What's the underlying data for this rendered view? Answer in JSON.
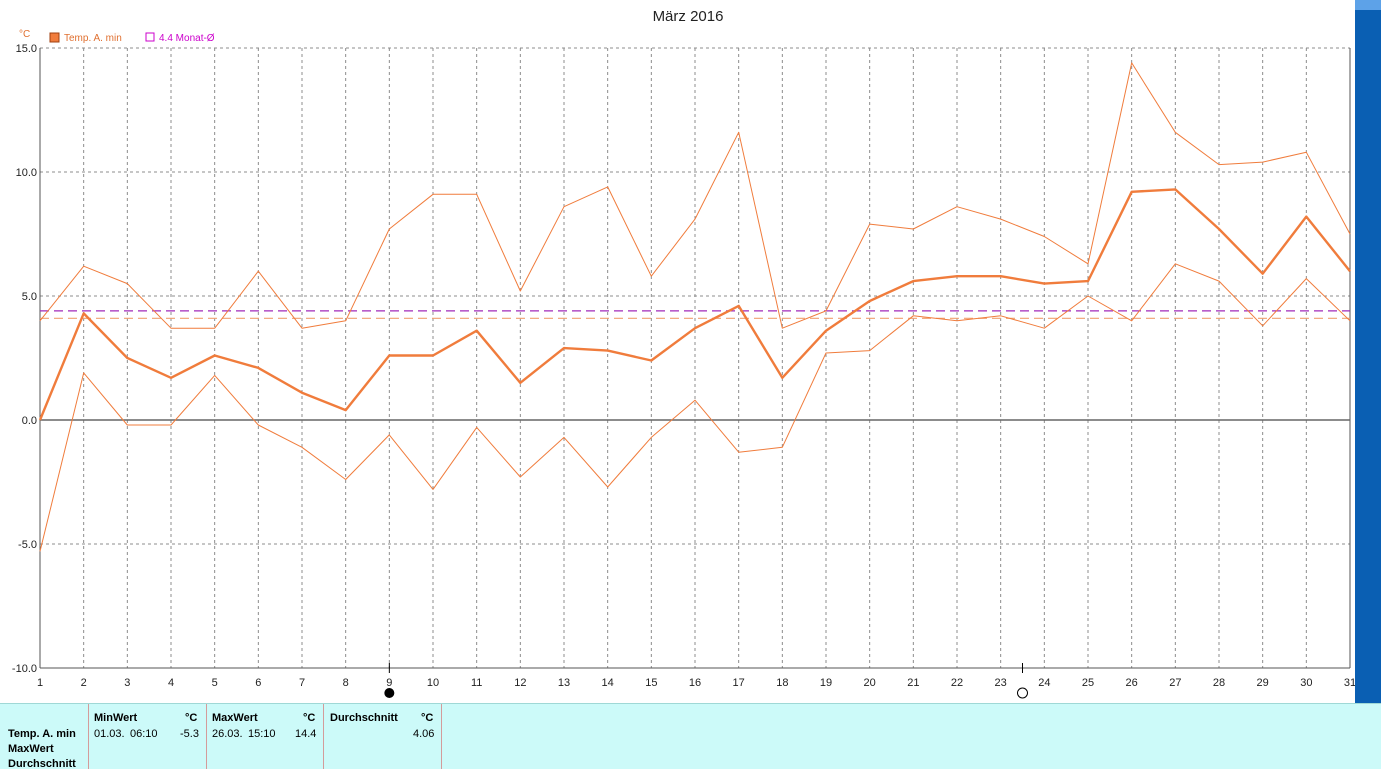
{
  "chart_data": {
    "type": "line",
    "title": "März 2016",
    "y_unit": "°C",
    "x": [
      1,
      2,
      3,
      4,
      5,
      6,
      7,
      8,
      9,
      10,
      11,
      12,
      13,
      14,
      15,
      16,
      17,
      18,
      19,
      20,
      21,
      22,
      23,
      24,
      25,
      26,
      27,
      28,
      29,
      30,
      31
    ],
    "ylim": [
      -10,
      15
    ],
    "yticks": [
      "15.0",
      "10.0",
      "5.0",
      "0.0",
      "-5.0",
      "-10.0"
    ],
    "ytick_values": [
      15,
      10,
      5,
      0,
      -5,
      -10
    ],
    "grid": true,
    "legend": [
      {
        "label": "Temp. A. min",
        "color": "#f07c3c",
        "marker": "filled-square"
      },
      {
        "label": "4.4 Monat-Ø",
        "color": "#cc00cc",
        "marker": "hollow-square"
      }
    ],
    "series": [
      {
        "name": "Temp. A. min",
        "role": "mean",
        "color": "#f07c3c",
        "values": [
          0.0,
          4.3,
          2.5,
          1.7,
          2.6,
          2.1,
          1.1,
          0.4,
          2.6,
          2.6,
          3.6,
          1.5,
          2.9,
          2.8,
          2.4,
          3.7,
          4.6,
          1.7,
          3.6,
          4.8,
          5.6,
          5.8,
          5.8,
          5.5,
          5.6,
          9.2,
          9.3,
          7.7,
          5.9,
          8.2,
          6.0
        ]
      },
      {
        "role": "upper",
        "color": "#f07c3c",
        "values": [
          4.0,
          6.2,
          5.5,
          3.7,
          3.7,
          6.0,
          3.7,
          4.0,
          7.7,
          9.1,
          9.1,
          5.2,
          8.6,
          9.4,
          5.8,
          8.1,
          11.6,
          3.7,
          4.4,
          7.9,
          7.7,
          8.6,
          8.1,
          7.4,
          6.3,
          14.4,
          11.6,
          10.3,
          10.4,
          10.8,
          7.5
        ]
      },
      {
        "role": "lower",
        "color": "#f07c3c",
        "values": [
          -5.3,
          1.9,
          -0.2,
          -0.2,
          1.8,
          -0.2,
          -1.1,
          -2.4,
          -0.6,
          -2.8,
          -0.3,
          -2.3,
          -0.7,
          -2.7,
          -0.7,
          0.8,
          -1.3,
          -1.1,
          2.7,
          2.8,
          4.2,
          4.0,
          4.2,
          3.7,
          5.0,
          4.0,
          6.3,
          5.6,
          3.8,
          5.7,
          4.0
        ]
      }
    ],
    "reference_lines": [
      {
        "value": 4.4,
        "color": "#a02ab8",
        "style": "dashed"
      },
      {
        "value": 4.1,
        "color": "#f0a070",
        "style": "dashed"
      }
    ],
    "moon_phases": [
      {
        "day": 9,
        "phase": "new"
      },
      {
        "day": 23.5,
        "phase": "full"
      }
    ]
  },
  "stats": {
    "row_labels": [
      "Temp. A. min",
      "MaxWert",
      "Durchschnitt"
    ],
    "min": {
      "header": "MinWert",
      "unit": "°C",
      "date": "01.03.",
      "time": "06:10",
      "value": "-5.3"
    },
    "max": {
      "header": "MaxWert",
      "unit": "°C",
      "date": "26.03.",
      "time": "15:10",
      "value": "14.4"
    },
    "avg": {
      "header": "Durchschnitt",
      "unit": "°C",
      "value": "4.06"
    }
  }
}
